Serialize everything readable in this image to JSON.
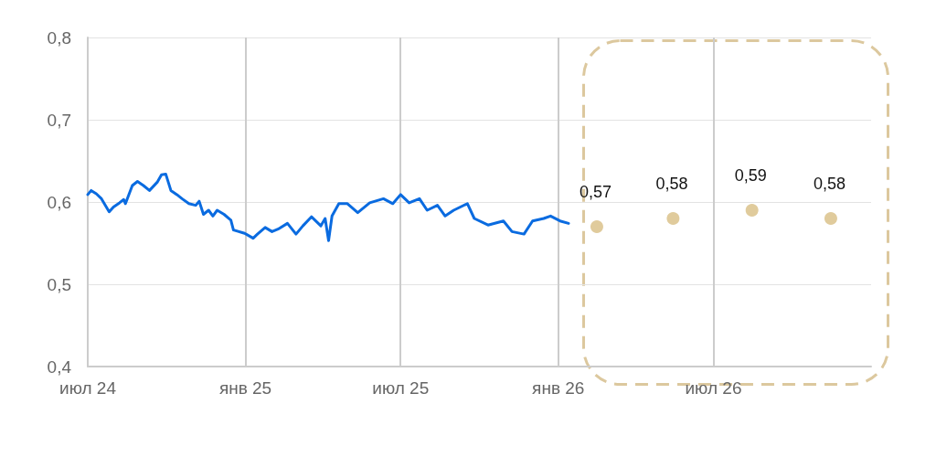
{
  "chart_data": {
    "type": "line",
    "xlim": [
      "2024-07-01",
      "2027-01-01"
    ],
    "xticks": [
      {
        "value": "2024-07-01",
        "label": "июл 24"
      },
      {
        "value": "2025-01-01",
        "label": "янв 25"
      },
      {
        "value": "2025-07-01",
        "label": "июл 25"
      },
      {
        "value": "2026-01-01",
        "label": "янв 26"
      },
      {
        "value": "2026-07-01",
        "label": "июл 26"
      }
    ],
    "ylim": [
      0.4,
      0.8
    ],
    "yticks": [
      {
        "value": 0.4,
        "label": "0,4"
      },
      {
        "value": 0.5,
        "label": "0,5"
      },
      {
        "value": 0.6,
        "label": "0,6"
      },
      {
        "value": 0.7,
        "label": "0,7"
      },
      {
        "value": 0.8,
        "label": "0,8"
      }
    ],
    "grid": true,
    "series": [
      {
        "color": "#0a6be0",
        "marker": "none",
        "line_style": "solid",
        "x": [
          "2024-07-01",
          "2024-07-05",
          "2024-07-11",
          "2024-07-17",
          "2024-07-26",
          "2024-07-31",
          "2024-08-07",
          "2024-08-12",
          "2024-08-14",
          "2024-08-22",
          "2024-08-28",
          "2024-09-04",
          "2024-09-11",
          "2024-09-20",
          "2024-09-25",
          "2024-09-30",
          "2024-10-06",
          "2024-10-13",
          "2024-10-19",
          "2024-10-27",
          "2024-11-04",
          "2024-11-08",
          "2024-11-13",
          "2024-11-19",
          "2024-11-24",
          "2024-11-29",
          "2024-12-07",
          "2024-12-15",
          "2024-12-18",
          "2024-12-31",
          "2025-01-10",
          "2025-01-15",
          "2025-01-24",
          "2025-02-01",
          "2025-02-08",
          "2025-02-19",
          "2025-03-01",
          "2025-03-09",
          "2025-03-19",
          "2025-03-30",
          "2025-04-04",
          "2025-04-08",
          "2025-04-12",
          "2025-04-20",
          "2025-04-30",
          "2025-05-12",
          "2025-05-26",
          "2025-06-11",
          "2025-06-22",
          "2025-07-01",
          "2025-07-11",
          "2025-07-23",
          "2025-08-01",
          "2025-08-13",
          "2025-08-22",
          "2025-09-01",
          "2025-09-17",
          "2025-09-25",
          "2025-10-11",
          "2025-10-29",
          "2025-11-08",
          "2025-11-22",
          "2025-12-02",
          "2025-12-15",
          "2025-12-23",
          "2026-01-03",
          "2026-01-13"
        ],
        "values": [
          0.609,
          0.614,
          0.61,
          0.604,
          0.588,
          0.594,
          0.599,
          0.603,
          0.598,
          0.62,
          0.625,
          0.62,
          0.614,
          0.624,
          0.633,
          0.634,
          0.614,
          0.609,
          0.604,
          0.598,
          0.596,
          0.601,
          0.585,
          0.59,
          0.583,
          0.59,
          0.585,
          0.578,
          0.566,
          0.562,
          0.556,
          0.561,
          0.569,
          0.564,
          0.567,
          0.574,
          0.561,
          0.571,
          0.582,
          0.571,
          0.58,
          0.553,
          0.583,
          0.598,
          0.598,
          0.587,
          0.599,
          0.604,
          0.598,
          0.609,
          0.599,
          0.604,
          0.59,
          0.596,
          0.583,
          0.59,
          0.598,
          0.58,
          0.572,
          0.577,
          0.564,
          0.561,
          0.577,
          0.58,
          0.583,
          0.577,
          0.574
        ]
      },
      {
        "type": "scatter",
        "color": "#e0cb9c",
        "marker": "circle",
        "x": [
          "2026-02-15",
          "2026-05-15",
          "2026-08-15",
          "2026-11-15"
        ],
        "values": [
          0.57,
          0.58,
          0.59,
          0.58
        ],
        "value_labels": [
          "0,57",
          "0,58",
          "0,59",
          "0,58"
        ]
      }
    ]
  }
}
